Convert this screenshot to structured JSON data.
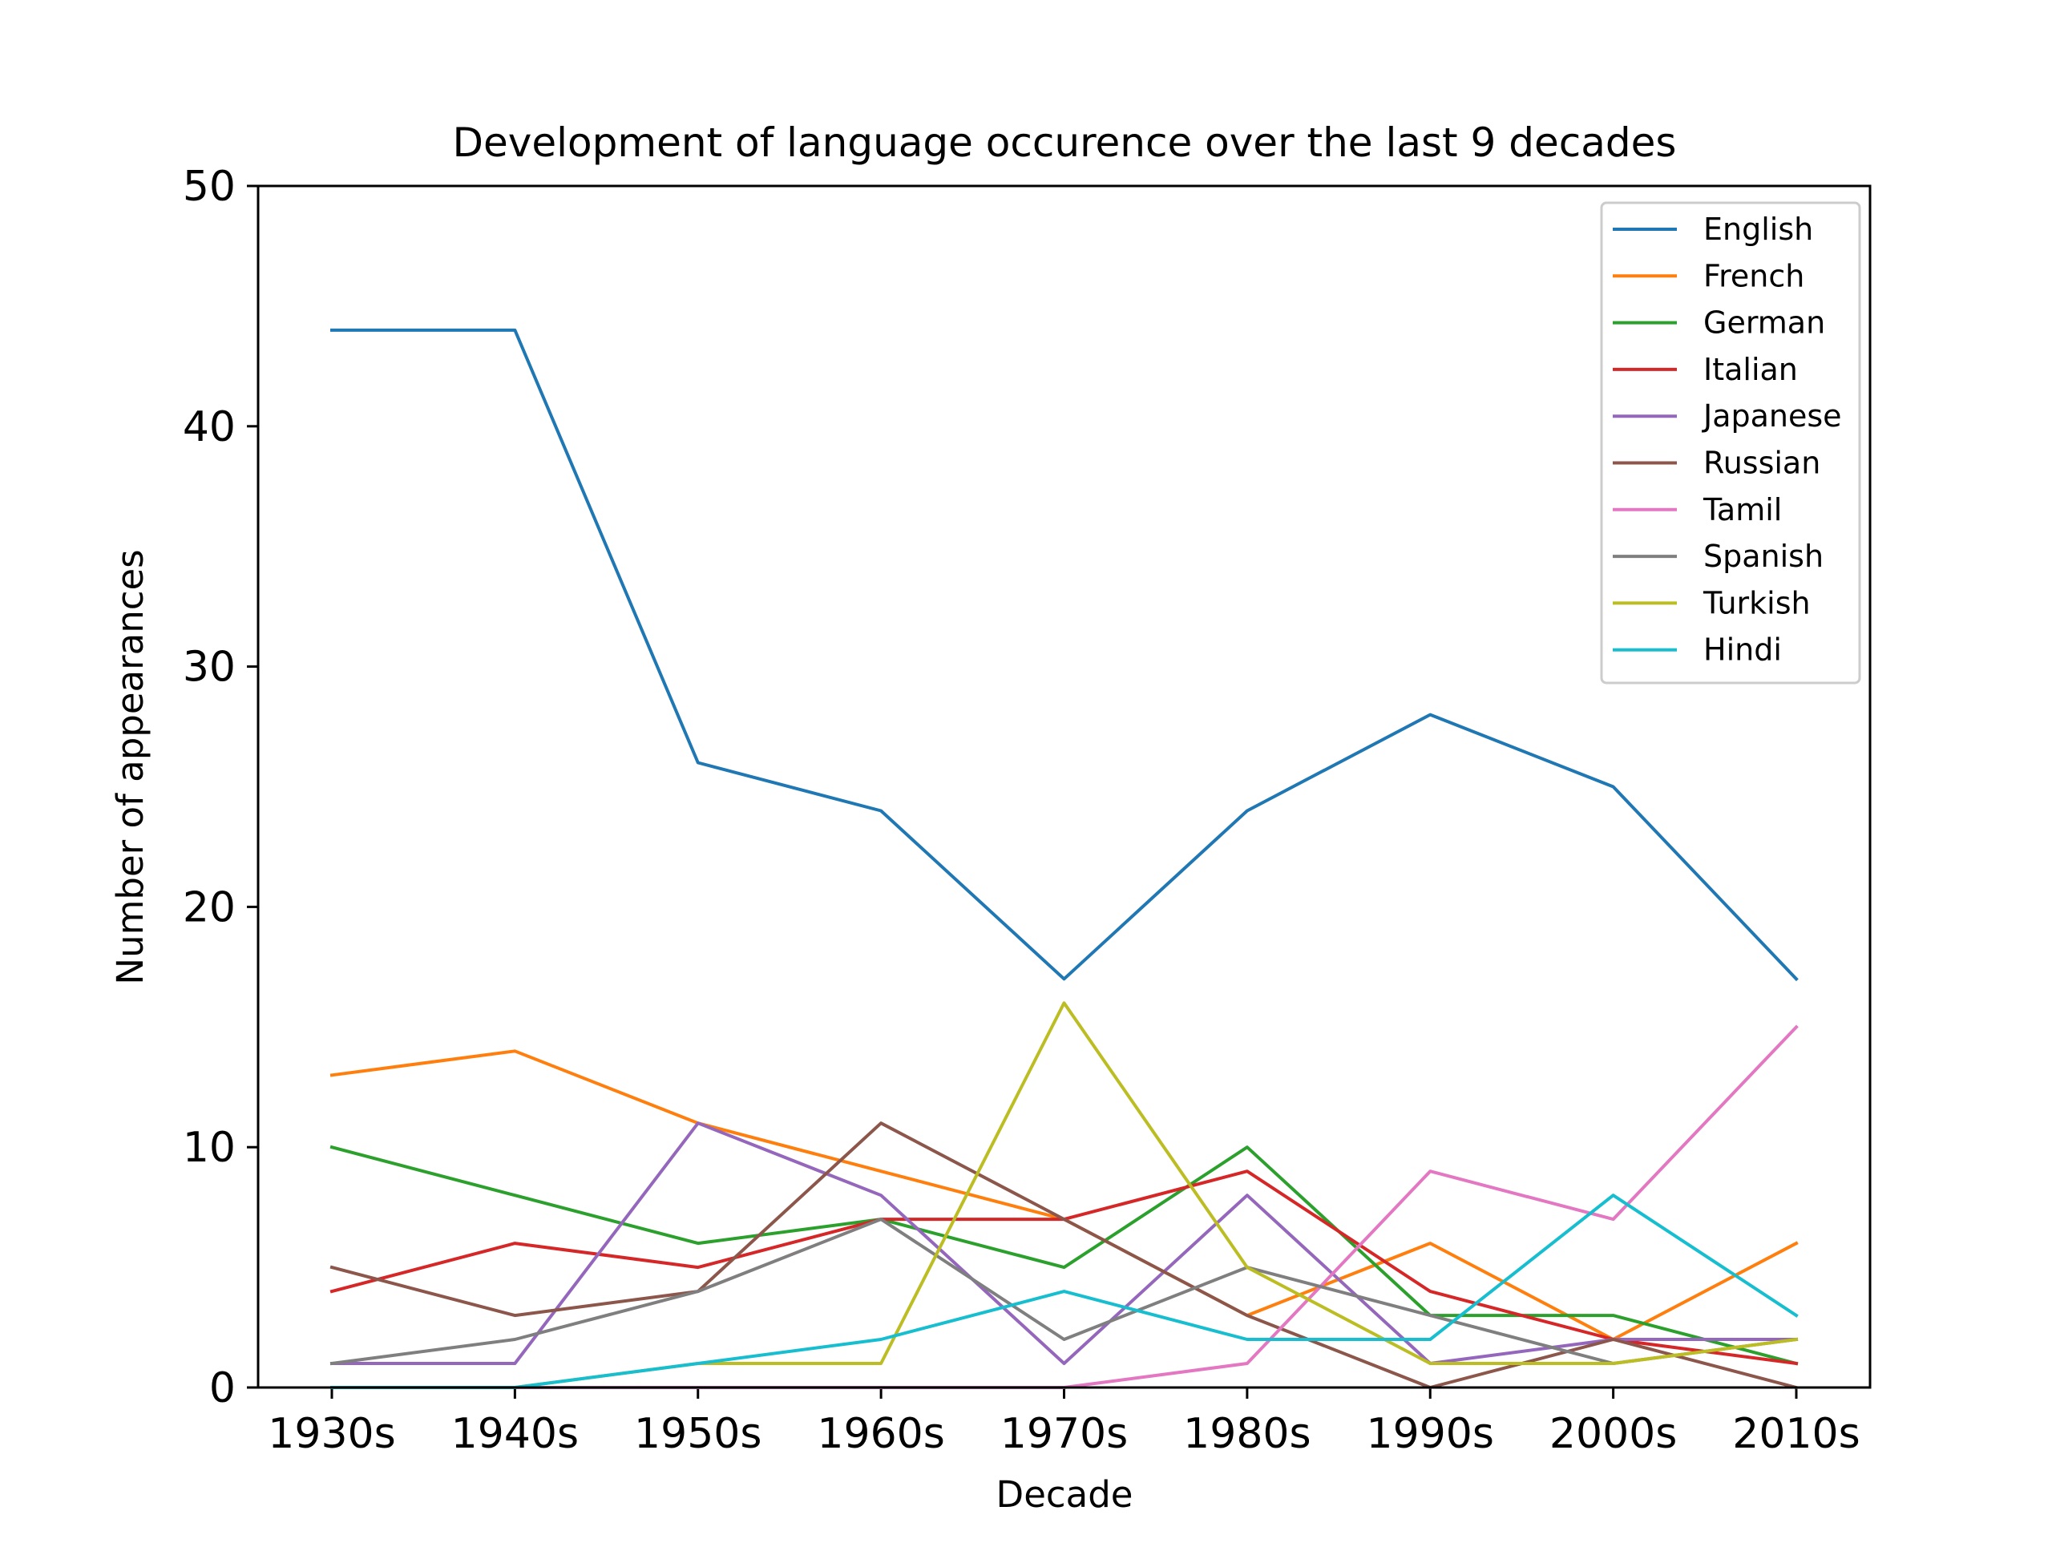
{
  "chart_data": {
    "type": "line",
    "title": "Development of language occurence over the last 9 decades",
    "xlabel": "Decade",
    "ylabel": "Number of appearances",
    "categories": [
      "1930s",
      "1940s",
      "1950s",
      "1960s",
      "1970s",
      "1980s",
      "1990s",
      "2000s",
      "2010s"
    ],
    "ylim": [
      0,
      50
    ],
    "yticks": [
      0,
      10,
      20,
      30,
      40,
      50
    ],
    "grid": false,
    "legend_position": "top-right",
    "series": [
      {
        "name": "English",
        "color": "#1f77b4",
        "values": [
          44,
          44,
          26,
          24,
          17,
          24,
          28,
          25,
          17
        ]
      },
      {
        "name": "French",
        "color": "#ff7f0e",
        "values": [
          13,
          14,
          11,
          9,
          7,
          3,
          6,
          2,
          6
        ]
      },
      {
        "name": "German",
        "color": "#2ca02c",
        "values": [
          10,
          8,
          6,
          7,
          5,
          10,
          3,
          3,
          1
        ]
      },
      {
        "name": "Italian",
        "color": "#d62728",
        "values": [
          4,
          6,
          5,
          7,
          7,
          9,
          4,
          2,
          1
        ]
      },
      {
        "name": "Japanese",
        "color": "#9467bd",
        "values": [
          1,
          1,
          11,
          8,
          1,
          8,
          1,
          2,
          2
        ]
      },
      {
        "name": "Russian",
        "color": "#8c564b",
        "values": [
          5,
          3,
          4,
          11,
          7,
          3,
          0,
          2,
          0
        ]
      },
      {
        "name": "Tamil",
        "color": "#e377c2",
        "values": [
          0,
          0,
          0,
          0,
          0,
          1,
          9,
          7,
          15
        ]
      },
      {
        "name": "Spanish",
        "color": "#7f7f7f",
        "values": [
          1,
          2,
          4,
          7,
          2,
          5,
          3,
          1,
          2
        ]
      },
      {
        "name": "Turkish",
        "color": "#bcbd22",
        "values": [
          0,
          0,
          1,
          1,
          16,
          5,
          1,
          1,
          2
        ]
      },
      {
        "name": "Hindi",
        "color": "#17becf",
        "values": [
          0,
          0,
          1,
          2,
          4,
          2,
          2,
          8,
          3
        ]
      }
    ]
  }
}
